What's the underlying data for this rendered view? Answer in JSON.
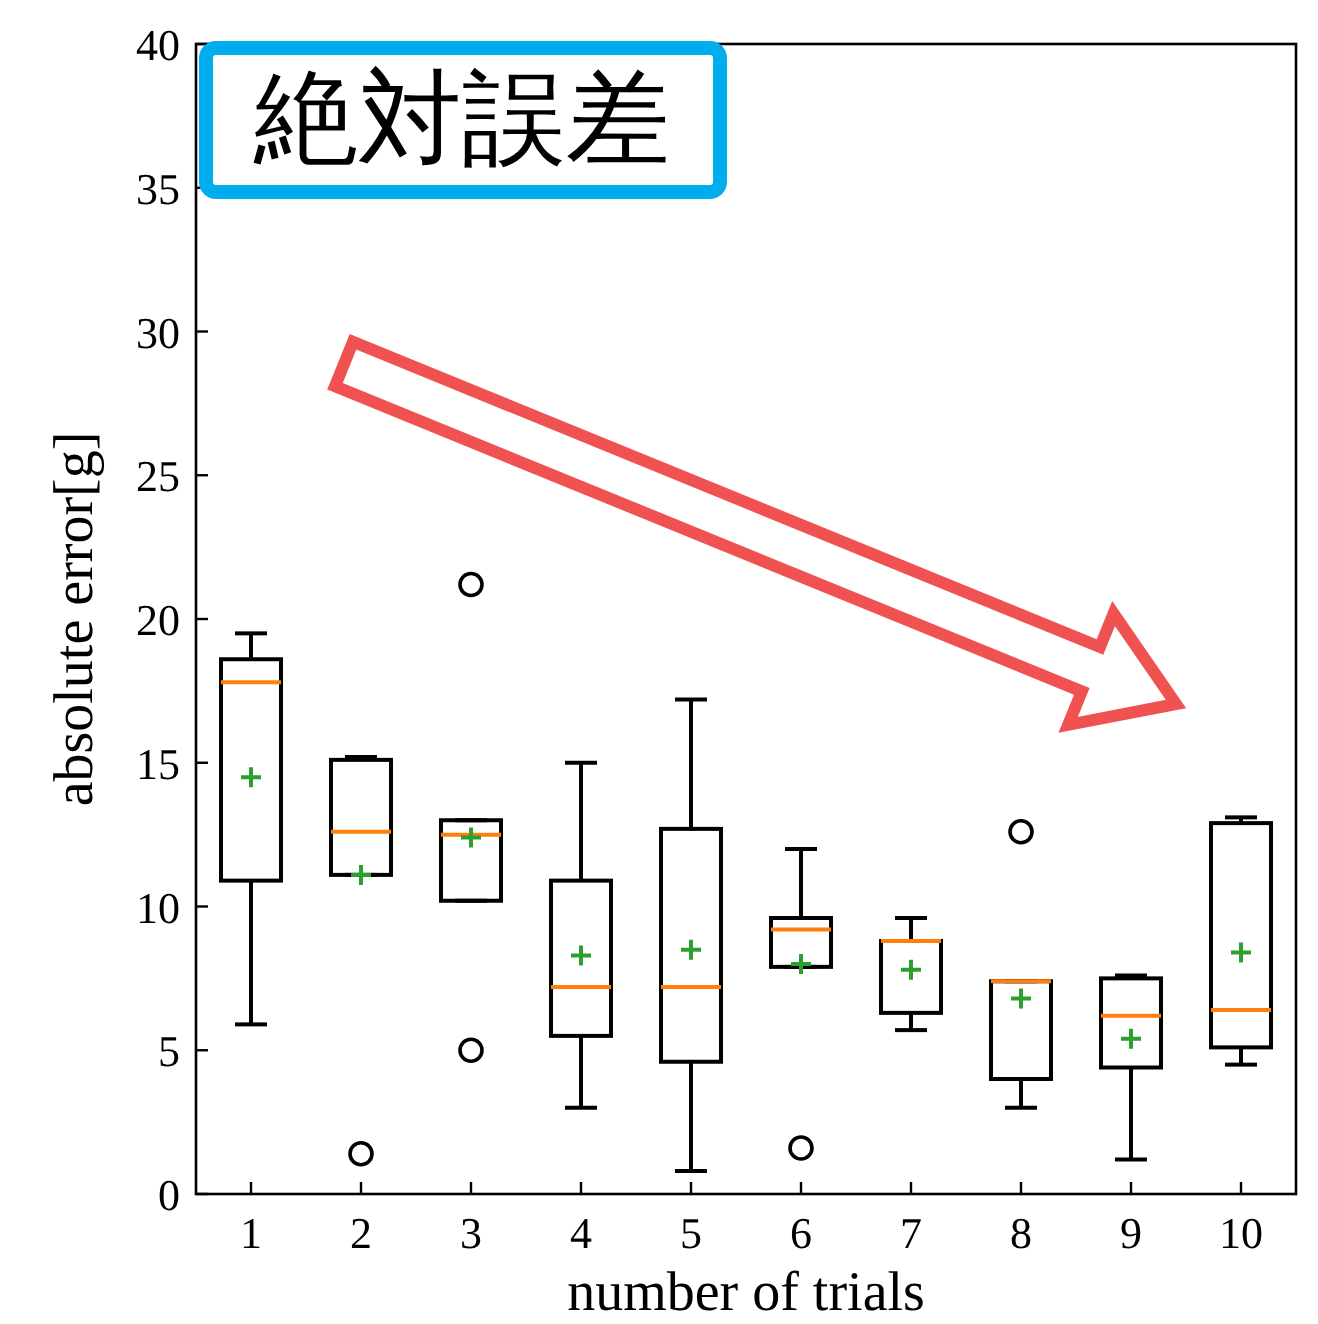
{
  "chart_data": {
    "type": "box",
    "title": "絶対誤差",
    "xlabel": "number of trials",
    "ylabel": "absolute error[g]",
    "categories": [
      "1",
      "2",
      "3",
      "4",
      "5",
      "6",
      "7",
      "8",
      "9",
      "10"
    ],
    "ylim": [
      0,
      40
    ],
    "yticks": [
      0,
      5,
      10,
      15,
      20,
      25,
      30,
      35,
      40
    ],
    "boxes": [
      {
        "low": 5.9,
        "q1": 10.9,
        "median": 17.8,
        "q3": 18.6,
        "high": 19.5,
        "mean": 14.5
      },
      {
        "low": 11.1,
        "q1": 11.1,
        "median": 12.6,
        "q3": 15.1,
        "high": 15.2,
        "mean": 11.1,
        "outliers": [
          1.4
        ]
      },
      {
        "low": 10.2,
        "q1": 10.2,
        "median": 12.5,
        "q3": 13.0,
        "high": 13.0,
        "mean": 12.4,
        "outliers": [
          5.0,
          21.2
        ]
      },
      {
        "low": 3.0,
        "q1": 5.5,
        "median": 7.2,
        "q3": 10.9,
        "high": 15.0,
        "mean": 8.3
      },
      {
        "low": 0.8,
        "q1": 4.6,
        "median": 7.2,
        "q3": 12.7,
        "high": 17.2,
        "mean": 8.5
      },
      {
        "low": 7.9,
        "q1": 7.9,
        "median": 9.2,
        "q3": 9.6,
        "high": 12.0,
        "mean": 8.0,
        "outliers": [
          1.6
        ]
      },
      {
        "low": 5.7,
        "q1": 6.3,
        "median": 8.8,
        "q3": 8.8,
        "high": 9.6,
        "mean": 7.8
      },
      {
        "low": 3.0,
        "q1": 4.0,
        "median": 7.4,
        "q3": 7.4,
        "high": 7.4,
        "mean": 6.8,
        "outliers": [
          12.6
        ]
      },
      {
        "low": 1.2,
        "q1": 4.4,
        "median": 6.2,
        "q3": 7.5,
        "high": 7.6,
        "mean": 5.4
      },
      {
        "low": 4.5,
        "q1": 5.1,
        "median": 6.4,
        "q3": 12.9,
        "high": 13.1,
        "mean": 8.4
      }
    ]
  }
}
